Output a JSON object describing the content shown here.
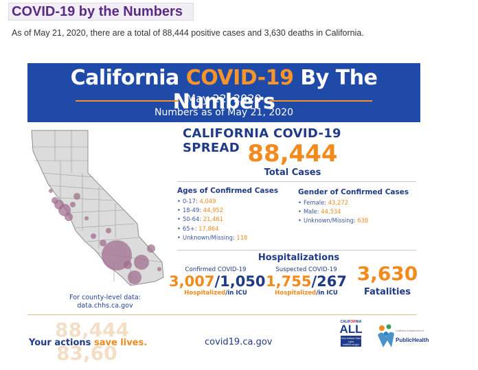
{
  "page": {
    "heading": "COVID-19 by the Numbers",
    "intro": "As of May 21, 2020, there are a total of 88,444 positive cases and 3,630 deaths in California."
  },
  "banner": {
    "title_part1": "California ",
    "title_accent": "COVID-19",
    "title_part2": " By The Numbers",
    "date": "May 22, 2020",
    "as_of": "Numbers as of May 21, 2020"
  },
  "spread": {
    "title": "CALIFORNIA COVID-19 SPREAD",
    "total_cases": "88,444",
    "total_label": "Total Cases"
  },
  "ages": {
    "title": "Ages of Confirmed Cases",
    "items": [
      {
        "label": "0-17: ",
        "value": "4,049"
      },
      {
        "label": "18-49: ",
        "value": "44,952"
      },
      {
        "label": "50-64: ",
        "value": "21,461"
      },
      {
        "label": "65+: ",
        "value": "17,864"
      },
      {
        "label": "Unknown/Missing: ",
        "value": "118"
      }
    ]
  },
  "gender": {
    "title": "Gender of Confirmed Cases",
    "items": [
      {
        "label": "Female: ",
        "value": "43,272"
      },
      {
        "label": "Male: ",
        "value": "44,534"
      },
      {
        "label": "Unknown/Missing: ",
        "value": "638"
      }
    ]
  },
  "hospitalizations": {
    "title": "Hospitalizations",
    "confirmed": {
      "caption": "Confirmed COVID-19",
      "hospitalized": "3,007",
      "icu": "1,050",
      "sub_hospitalized": "Hospitalized",
      "sub_icu": "/in ICU"
    },
    "suspected": {
      "caption": "Suspected COVID-19",
      "hospitalized": "1,755",
      "icu": "267",
      "sub_hospitalized": "Hospitalized",
      "sub_icu": "/in ICU"
    }
  },
  "fatalities": {
    "number": "3,630",
    "label": "Fatalities"
  },
  "county_note": {
    "line1": "For county-level data:",
    "line2": "data.chhs.ca.gov"
  },
  "footer": {
    "tagline_part1": "Your actions ",
    "tagline_accent": "save lives.",
    "site": "covid19.ca.gov",
    "ghost_top": "88,444",
    "ghost_bottom": "83,60"
  },
  "logos": {
    "ca_all_top_a": "CALIF",
    "ca_all_top_r": "OR",
    "ca_all_top_b": "NIA",
    "ca_all_word": "ALL",
    "ca_all_box": "Your Actions Save Lives covid19.ca.gov",
    "cdph_small": "California Department of",
    "cdph_big": "PublicHealth"
  },
  "colors": {
    "banner_blue": "#1f4aa8",
    "accent_orange": "#f28a1e",
    "navy_text": "#1f3a87",
    "heading_purple": "#5b2a86",
    "map_bubble": "#a0698c"
  }
}
